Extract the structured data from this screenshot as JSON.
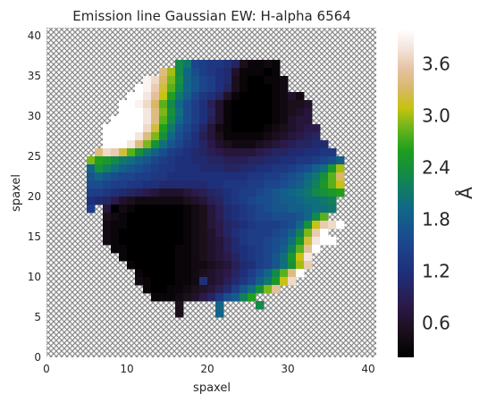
{
  "chart_data": {
    "type": "heatmap",
    "title": "Emission line Gaussian EW: H-alpha 6564",
    "xlabel": "spaxel",
    "ylabel": "spaxel",
    "colorbar_label": "Å",
    "xlim": [
      0,
      41
    ],
    "ylim": [
      0,
      41
    ],
    "x_ticks": [
      "0",
      "10",
      "20",
      "30",
      "40"
    ],
    "y_ticks": [
      "0",
      "5",
      "10",
      "15",
      "20",
      "25",
      "30",
      "35",
      "40"
    ],
    "colorbar_range": [
      0.2,
      4.0
    ],
    "colorbar_ticks": [
      "0.6",
      "1.2",
      "1.8",
      "2.4",
      "3.0",
      "3.6"
    ],
    "colormap": "gist_earth_r-like (black - navy - blue - teal - green - yellow - tan - white)",
    "masked_background": "grey crosshatch",
    "grid": false,
    "map_rows": [
      {
        "y": 36,
        "x_from": 16,
        "values": [
          2.3,
          2.1,
          1.5,
          1.4,
          1.3,
          1.3,
          1.2,
          1.0,
          0.5,
          0.3,
          0.3,
          0.4,
          0.3
        ]
      },
      {
        "y": 35,
        "x_from": 14,
        "values": [
          3.4,
          3.0,
          2.3,
          1.9,
          1.6,
          1.4,
          1.3,
          1.2,
          1.1,
          0.6,
          0.3,
          0.3,
          0.3,
          0.2,
          0.3
        ]
      },
      {
        "y": 34,
        "x_from": 12,
        "values": [
          3.9,
          3.7,
          3.3,
          2.9,
          2.4,
          1.9,
          1.7,
          1.5,
          1.4,
          1.2,
          1.1,
          0.5,
          0.3,
          0.2,
          0.2,
          0.3,
          0.3,
          0.4
        ]
      },
      {
        "y": 33,
        "x_from": 11,
        "values": [
          4.0,
          3.9,
          3.6,
          3.2,
          2.8,
          2.3,
          1.9,
          1.7,
          1.5,
          1.4,
          1.2,
          1.0,
          0.5,
          0.3,
          0.2,
          0.2,
          0.2,
          0.3,
          0.4
        ]
      },
      {
        "y": 32,
        "x_from": 10,
        "values": [
          4.0,
          4.0,
          3.8,
          3.5,
          3.1,
          2.6,
          2.1,
          1.8,
          1.5,
          1.3,
          1.2,
          1.0,
          0.6,
          0.3,
          0.2,
          0.2,
          0.2,
          0.2,
          0.3,
          0.4,
          0.6,
          0.4
        ]
      },
      {
        "y": 31,
        "x_from": 9,
        "values": [
          4.0,
          4.0,
          3.9,
          3.7,
          3.3,
          2.8,
          2.3,
          1.9,
          1.6,
          1.4,
          1.2,
          0.9,
          0.6,
          0.3,
          0.2,
          0.2,
          0.2,
          0.2,
          0.2,
          0.3,
          0.4,
          0.5,
          0.5,
          0.6
        ]
      },
      {
        "y": 30,
        "x_from": 9,
        "values": [
          4.0,
          4.0,
          4.0,
          3.8,
          3.4,
          2.9,
          2.4,
          2.0,
          1.6,
          1.4,
          1.2,
          1.0,
          0.6,
          0.3,
          0.2,
          0.2,
          0.2,
          0.2,
          0.2,
          0.3,
          0.4,
          0.5,
          0.6,
          0.7
        ]
      },
      {
        "y": 29,
        "x_from": 8,
        "values": [
          4.0,
          4.0,
          4.0,
          4.0,
          3.8,
          3.4,
          2.8,
          2.3,
          1.9,
          1.6,
          1.4,
          1.2,
          0.9,
          0.6,
          0.3,
          0.2,
          0.2,
          0.2,
          0.2,
          0.2,
          0.3,
          0.4,
          0.6,
          0.7,
          0.7
        ]
      },
      {
        "y": 28,
        "x_from": 7,
        "values": [
          4.0,
          4.0,
          4.0,
          4.0,
          4.0,
          3.7,
          3.2,
          2.6,
          2.1,
          1.7,
          1.5,
          1.3,
          1.0,
          0.7,
          0.4,
          0.3,
          0.2,
          0.2,
          0.2,
          0.2,
          0.3,
          0.4,
          0.5,
          0.6,
          0.7,
          0.8,
          0.8
        ]
      },
      {
        "y": 27,
        "x_from": 7,
        "values": [
          4.0,
          4.0,
          4.0,
          4.0,
          3.8,
          3.4,
          2.9,
          2.4,
          1.9,
          1.6,
          1.4,
          1.2,
          0.9,
          0.7,
          0.5,
          0.3,
          0.3,
          0.3,
          0.3,
          0.3,
          0.4,
          0.5,
          0.6,
          0.7,
          0.8,
          0.9,
          1.0
        ]
      },
      {
        "y": 26,
        "x_from": 7,
        "values": [
          4.0,
          4.0,
          4.0,
          3.8,
          3.4,
          2.9,
          2.4,
          2.0,
          1.7,
          1.5,
          1.3,
          1.2,
          1.0,
          0.8,
          0.6,
          0.5,
          0.4,
          0.4,
          0.4,
          0.5,
          0.6,
          0.7,
          0.8,
          0.9,
          1.0,
          1.0,
          1.1,
          1.1
        ]
      },
      {
        "y": 25,
        "x_from": 6,
        "values": [
          3.4,
          3.7,
          3.6,
          3.2,
          2.8,
          2.4,
          2.1,
          1.8,
          1.6,
          1.4,
          1.3,
          1.2,
          1.1,
          1.0,
          0.9,
          0.8,
          0.7,
          0.7,
          0.7,
          0.7,
          0.8,
          0.9,
          1.0,
          1.0,
          1.1,
          1.1,
          1.2,
          1.2,
          1.3,
          1.3
        ]
      },
      {
        "y": 24,
        "x_from": 5,
        "values": [
          2.9,
          2.6,
          2.5,
          2.3,
          2.1,
          2.0,
          1.8,
          1.7,
          1.5,
          1.4,
          1.3,
          1.2,
          1.2,
          1.1,
          1.1,
          1.0,
          1.0,
          0.9,
          0.9,
          0.9,
          1.0,
          1.0,
          1.1,
          1.1,
          1.2,
          1.2,
          1.3,
          1.3,
          1.4,
          1.5,
          1.6,
          1.8
        ]
      },
      {
        "y": 23,
        "x_from": 5,
        "values": [
          1.9,
          2.4,
          2.2,
          2.0,
          1.8,
          1.7,
          1.6,
          1.5,
          1.4,
          1.3,
          1.3,
          1.2,
          1.2,
          1.2,
          1.1,
          1.1,
          1.1,
          1.0,
          1.0,
          1.1,
          1.1,
          1.2,
          1.2,
          1.3,
          1.3,
          1.4,
          1.5,
          1.6,
          1.8,
          2.0,
          2.5,
          3.0
        ]
      },
      {
        "y": 22,
        "x_from": 5,
        "values": [
          1.7,
          1.9,
          1.7,
          1.6,
          1.5,
          1.5,
          1.4,
          1.4,
          1.3,
          1.3,
          1.2,
          1.2,
          1.2,
          1.2,
          1.2,
          1.2,
          1.2,
          1.2,
          1.2,
          1.2,
          1.3,
          1.3,
          1.4,
          1.4,
          1.5,
          1.6,
          1.7,
          1.9,
          2.1,
          2.4,
          2.8,
          3.3
        ]
      },
      {
        "y": 21,
        "x_from": 5,
        "values": [
          1.6,
          1.6,
          1.5,
          1.4,
          1.4,
          1.3,
          1.3,
          1.2,
          1.2,
          1.1,
          1.1,
          1.1,
          1.1,
          1.1,
          1.1,
          1.2,
          1.2,
          1.3,
          1.3,
          1.3,
          1.4,
          1.4,
          1.5,
          1.5,
          1.6,
          1.7,
          1.8,
          2.0,
          2.2,
          2.5,
          2.8,
          3.1
        ]
      },
      {
        "y": 20,
        "x_from": 5,
        "values": [
          1.4,
          1.4,
          1.3,
          1.2,
          1.1,
          1.0,
          0.9,
          0.8,
          0.7,
          0.6,
          0.6,
          0.6,
          0.7,
          0.8,
          0.9,
          1.0,
          1.1,
          1.2,
          1.3,
          1.4,
          1.4,
          1.5,
          1.6,
          1.7,
          1.8,
          1.9,
          2.0,
          2.1,
          2.3,
          2.4,
          2.5,
          2.6
        ]
      },
      {
        "y": 19,
        "x_from": 5,
        "values": [
          1.2,
          1.1,
          1.0,
          0.8,
          0.6,
          0.5,
          0.4,
          0.4,
          0.4,
          0.4,
          0.4,
          0.4,
          0.5,
          0.6,
          0.7,
          0.9,
          1.0,
          1.2,
          1.3,
          1.4,
          1.5,
          1.6,
          1.6,
          1.7,
          1.8,
          1.8,
          1.9,
          2.0,
          2.0,
          2.1,
          2.2
        ]
      },
      {
        "y": 18,
        "x_from": 5,
        "values": [
          1.4,
          null,
          0.7,
          0.2,
          0.4,
          0.3,
          0.2,
          0.2,
          0.2,
          0.2,
          0.2,
          0.2,
          0.3,
          0.4,
          0.5,
          0.7,
          0.9,
          1.1,
          1.2,
          1.3,
          1.4,
          1.5,
          1.6,
          1.7,
          1.7,
          1.8,
          1.8,
          1.9,
          2.0,
          2.0,
          2.1
        ]
      },
      {
        "y": 17,
        "x_from": 7,
        "values": [
          0.5,
          0.4,
          0.3,
          0.2,
          0.2,
          0.2,
          0.2,
          0.2,
          0.2,
          0.2,
          0.3,
          0.4,
          0.5,
          0.7,
          0.9,
          1.1,
          1.2,
          1.3,
          1.4,
          1.5,
          1.5,
          1.6,
          1.6,
          1.6,
          1.7,
          1.9,
          2.3,
          2.8
        ]
      },
      {
        "y": 16,
        "x_from": 7,
        "values": [
          0.4,
          0.3,
          0.3,
          0.2,
          0.2,
          0.2,
          0.2,
          0.2,
          0.2,
          0.2,
          0.3,
          0.4,
          0.5,
          0.7,
          0.8,
          1.0,
          1.1,
          1.2,
          1.3,
          1.4,
          1.4,
          1.4,
          1.5,
          1.6,
          1.9,
          2.4,
          3.1,
          3.6,
          3.7,
          4.0
        ]
      },
      {
        "y": 15,
        "x_from": 7,
        "values": [
          0.4,
          0.3,
          0.2,
          0.2,
          0.2,
          0.2,
          0.2,
          0.2,
          0.2,
          0.2,
          0.3,
          0.4,
          0.5,
          0.6,
          0.8,
          1.0,
          1.2,
          1.3,
          1.4,
          1.4,
          1.4,
          1.5,
          1.6,
          1.8,
          2.2,
          2.9,
          3.6,
          4.0
        ]
      },
      {
        "y": 14,
        "x_from": 7,
        "values": [
          0.4,
          0.3,
          0.2,
          0.2,
          0.2,
          0.2,
          0.2,
          0.2,
          0.2,
          0.2,
          0.3,
          0.4,
          0.5,
          0.6,
          0.7,
          0.9,
          1.1,
          1.3,
          1.4,
          1.4,
          1.5,
          1.6,
          1.7,
          2.0,
          2.5,
          3.2,
          3.8,
          4.0,
          4.0
        ]
      },
      {
        "y": 13,
        "x_from": 8,
        "values": [
          0.3,
          0.3,
          0.2,
          0.2,
          0.2,
          0.2,
          0.2,
          0.2,
          0.3,
          0.3,
          0.4,
          0.5,
          0.6,
          0.7,
          0.9,
          1.1,
          1.2,
          1.3,
          1.4,
          1.5,
          1.6,
          1.8,
          2.2,
          2.8,
          3.5,
          4.0
        ]
      },
      {
        "y": 12,
        "x_from": 9,
        "values": [
          0.3,
          0.2,
          0.2,
          0.2,
          0.2,
          0.2,
          0.2,
          0.3,
          0.3,
          0.4,
          0.5,
          0.6,
          0.7,
          0.8,
          1.0,
          1.2,
          1.3,
          1.4,
          1.5,
          1.7,
          2.0,
          2.5,
          3.1,
          3.8
        ]
      },
      {
        "y": 11,
        "x_from": 10,
        "values": [
          0.3,
          0.2,
          0.2,
          0.2,
          0.2,
          0.2,
          0.3,
          0.3,
          0.4,
          0.4,
          0.5,
          0.6,
          0.7,
          0.9,
          1.1,
          1.2,
          1.4,
          1.5,
          1.7,
          2.0,
          2.4,
          3.0,
          3.6
        ]
      },
      {
        "y": 10,
        "x_from": 11,
        "values": [
          0.3,
          0.2,
          0.2,
          0.2,
          0.2,
          0.3,
          0.3,
          0.4,
          0.5,
          0.6,
          0.7,
          0.8,
          1.0,
          1.2,
          1.4,
          1.6,
          1.9,
          2.3,
          2.8,
          3.4,
          4.0
        ]
      },
      {
        "y": 9,
        "x_from": 11,
        "values": [
          0.4,
          0.3,
          0.2,
          0.2,
          0.2,
          0.3,
          0.3,
          0.4,
          1.2,
          0.6,
          0.7,
          0.9,
          1.1,
          1.3,
          1.5,
          1.8,
          2.1,
          2.5,
          3.1,
          3.7
        ]
      },
      {
        "y": 8,
        "x_from": 12,
        "values": [
          0.3,
          0.2,
          0.2,
          0.3,
          0.3,
          0.4,
          0.5,
          0.6,
          0.7,
          0.9,
          1.1,
          1.4,
          1.7,
          2.0,
          2.4,
          2.9,
          3.5
        ]
      },
      {
        "y": 7,
        "x_from": 13,
        "values": [
          0.3,
          0.3,
          0.3,
          0.4,
          0.5,
          0.6,
          0.8,
          1.0,
          1.3,
          1.6,
          1.8,
          2.2,
          2.6
        ]
      },
      {
        "y": 6,
        "x_from": 16,
        "values": [
          0.5
        ]
      },
      {
        "y": 6,
        "x_from": 21,
        "values": [
          1.9
        ]
      },
      {
        "y": 6,
        "x_from": 26,
        "values": [
          2.3
        ]
      },
      {
        "y": 5,
        "x_from": 16,
        "values": [
          0.5
        ]
      },
      {
        "y": 5,
        "x_from": 21,
        "values": [
          1.9
        ]
      }
    ]
  }
}
